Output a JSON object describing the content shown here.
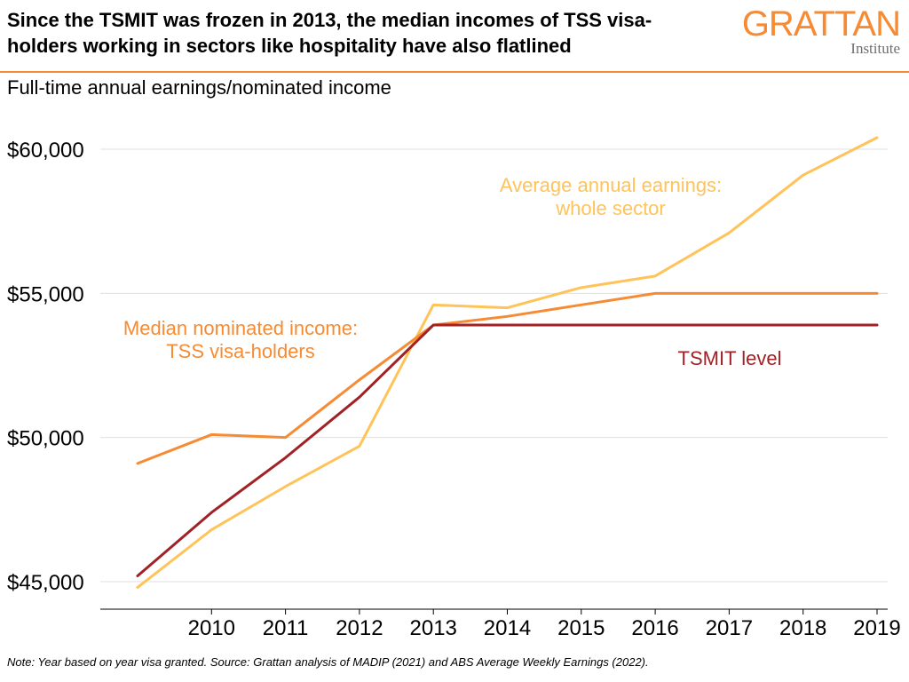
{
  "header": {
    "title": "Since the TSMIT was frozen in 2013, the median incomes of TSS visa-holders working in sectors like hospitality have also flatlined",
    "subtitle": "Full-time annual earnings/nominated income",
    "logo_word": "GRATTAN",
    "logo_sub": "Institute"
  },
  "footer": {
    "note": "Note: Year based on year visa granted. Source: Grattan analysis of MADIP (2021) and ABS Average Weekly Earnings (2022)."
  },
  "colors": {
    "average": "#FFC35A",
    "median": "#F68B33",
    "tsmit": "#A02226",
    "grid": "#e0e0e0",
    "axis": "#000000"
  },
  "chart_data": {
    "type": "line",
    "x": [
      2009,
      2010,
      2011,
      2012,
      2013,
      2014,
      2015,
      2016,
      2017,
      2018,
      2019
    ],
    "x_ticks": [
      2010,
      2011,
      2012,
      2013,
      2014,
      2015,
      2016,
      2017,
      2018,
      2019
    ],
    "y_ticks": [
      45000,
      50000,
      55000,
      60000
    ],
    "y_tick_labels": [
      "$45,000",
      "$50,000",
      "$55,000",
      "$60,000"
    ],
    "xlim": [
      2009,
      2019
    ],
    "ylim": [
      44000,
      61500
    ],
    "grid": "horizontal",
    "series": [
      {
        "key": "average",
        "name": "Average annual earnings: whole sector",
        "label_lines": [
          "Average annual earnings:",
          "whole sector"
        ],
        "values": [
          44800,
          46800,
          48300,
          49700,
          54600,
          54500,
          55200,
          55600,
          57100,
          59100,
          60400
        ]
      },
      {
        "key": "median",
        "name": "Median nominated income: TSS visa-holders",
        "label_lines": [
          "Median nominated income:",
          "TSS visa-holders"
        ],
        "values": [
          49100,
          50100,
          50000,
          52000,
          53900,
          54200,
          54600,
          55000,
          55000,
          55000,
          55000
        ]
      },
      {
        "key": "tsmit",
        "name": "TSMIT level",
        "label_lines": [
          "TSMIT level"
        ],
        "values": [
          45200,
          47400,
          49300,
          51400,
          53900,
          53900,
          53900,
          53900,
          53900,
          53900,
          53900
        ]
      }
    ]
  }
}
